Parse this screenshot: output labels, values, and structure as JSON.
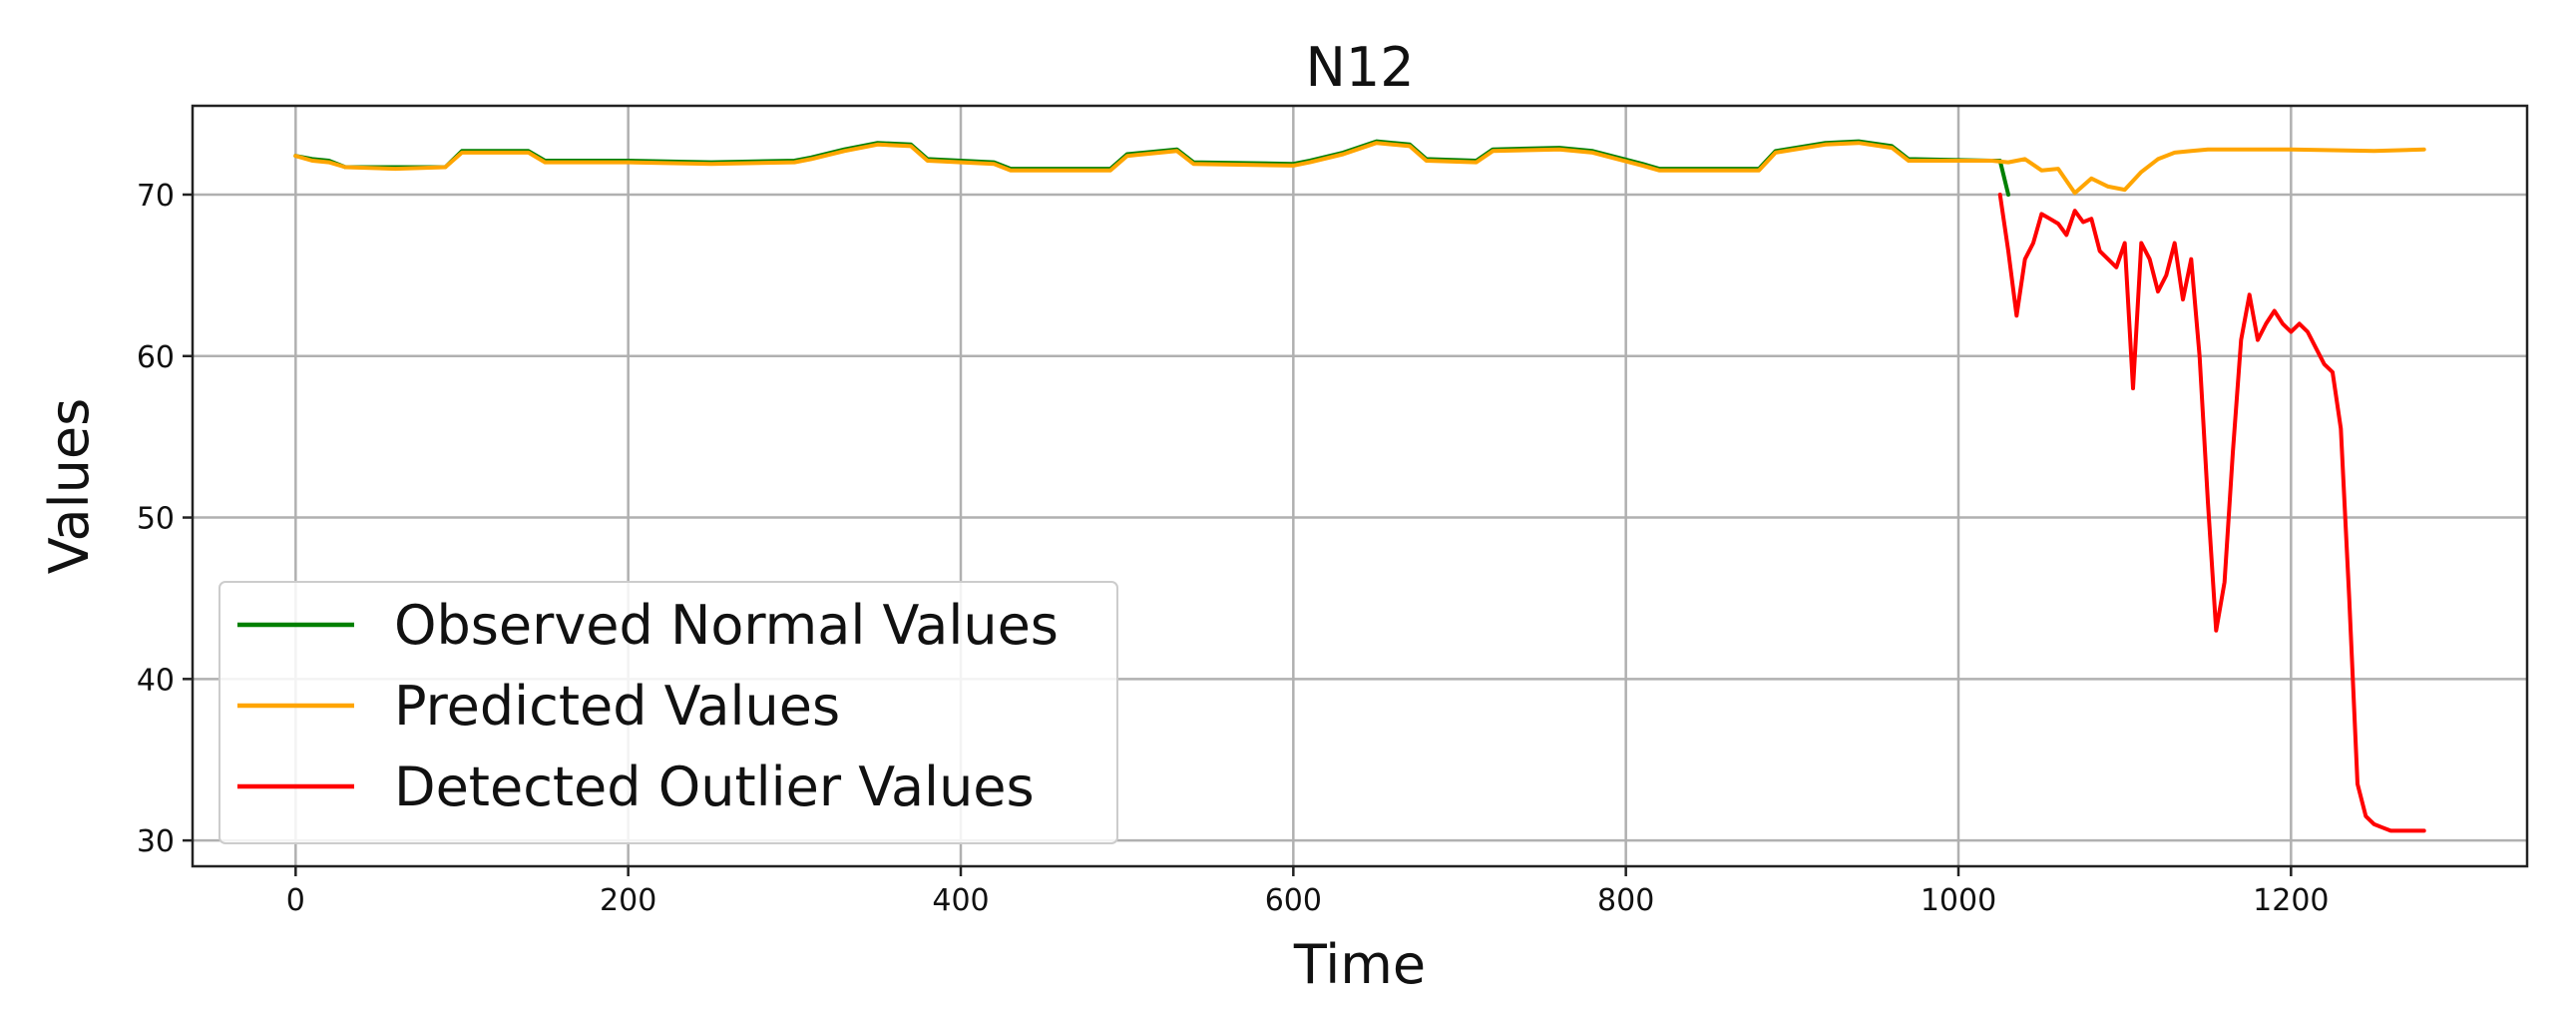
{
  "chart_data": {
    "type": "line",
    "title": "N12",
    "xlabel": "Time",
    "ylabel": "Values",
    "xlim": [
      -62,
      1342
    ],
    "ylim": [
      28.4,
      75.5
    ],
    "xticks": [
      0,
      200,
      400,
      600,
      800,
      1000,
      1200
    ],
    "yticks": [
      30,
      40,
      50,
      60,
      70
    ],
    "grid": true,
    "legend_position": "lower-left",
    "series": [
      {
        "name": "Observed Normal Values",
        "color": "#008000",
        "x": [
          0,
          10,
          20,
          30,
          60,
          90,
          100,
          140,
          150,
          200,
          250,
          300,
          310,
          330,
          350,
          370,
          380,
          420,
          430,
          490,
          500,
          530,
          540,
          600,
          610,
          630,
          650,
          670,
          680,
          710,
          720,
          760,
          780,
          810,
          820,
          880,
          890,
          920,
          940,
          960,
          970,
          1020,
          1025,
          1030
        ],
        "y": [
          72.4,
          72.2,
          72.1,
          71.7,
          71.7,
          71.7,
          72.7,
          72.7,
          72.1,
          72.1,
          72.0,
          72.1,
          72.3,
          72.8,
          73.2,
          73.1,
          72.2,
          72.0,
          71.6,
          71.6,
          72.5,
          72.8,
          72.0,
          71.9,
          72.1,
          72.6,
          73.3,
          73.1,
          72.2,
          72.1,
          72.8,
          72.9,
          72.7,
          71.9,
          71.6,
          71.6,
          72.7,
          73.2,
          73.3,
          73.0,
          72.2,
          72.1,
          72.1,
          70.0
        ]
      },
      {
        "name": "Predicted Values",
        "color": "#ffa500",
        "x": [
          0,
          10,
          20,
          30,
          60,
          90,
          100,
          140,
          150,
          200,
          250,
          300,
          310,
          330,
          350,
          370,
          380,
          420,
          430,
          490,
          500,
          530,
          540,
          600,
          610,
          630,
          650,
          670,
          680,
          710,
          720,
          760,
          780,
          810,
          820,
          880,
          890,
          920,
          940,
          960,
          970,
          1020,
          1030,
          1040,
          1050,
          1060,
          1070,
          1080,
          1090,
          1100,
          1110,
          1120,
          1130,
          1140,
          1150,
          1160,
          1170,
          1200,
          1250,
          1280
        ],
        "y": [
          72.4,
          72.1,
          72.0,
          71.7,
          71.6,
          71.7,
          72.6,
          72.6,
          72.0,
          72.0,
          71.9,
          72.0,
          72.2,
          72.7,
          73.1,
          73.0,
          72.1,
          71.9,
          71.5,
          71.5,
          72.4,
          72.7,
          71.9,
          71.8,
          72.0,
          72.5,
          73.2,
          73.0,
          72.1,
          72.0,
          72.7,
          72.8,
          72.6,
          71.8,
          71.5,
          71.5,
          72.6,
          73.1,
          73.2,
          72.9,
          72.1,
          72.1,
          72.0,
          72.2,
          71.5,
          71.6,
          70.1,
          71.0,
          70.5,
          70.3,
          71.4,
          72.2,
          72.6,
          72.7,
          72.8,
          72.8,
          72.8,
          72.8,
          72.7,
          72.8
        ]
      },
      {
        "name": "Detected Outlier Values",
        "color": "#ff0000",
        "x": [
          1025,
          1030,
          1035,
          1040,
          1045,
          1050,
          1055,
          1060,
          1065,
          1070,
          1075,
          1080,
          1085,
          1090,
          1095,
          1100,
          1105,
          1110,
          1115,
          1120,
          1125,
          1130,
          1135,
          1140,
          1145,
          1150,
          1155,
          1160,
          1165,
          1170,
          1175,
          1180,
          1185,
          1190,
          1195,
          1200,
          1205,
          1210,
          1215,
          1220,
          1225,
          1230,
          1235,
          1240,
          1245,
          1250,
          1255,
          1260,
          1265,
          1270,
          1275,
          1280
        ],
        "y": [
          70.0,
          66.5,
          62.5,
          66.0,
          67.0,
          68.8,
          68.5,
          68.2,
          67.5,
          69.0,
          68.3,
          68.5,
          66.5,
          66.0,
          65.5,
          67.0,
          58.0,
          67.0,
          66.0,
          64.0,
          65.0,
          67.0,
          63.5,
          66.0,
          60.0,
          51.0,
          43.0,
          46.0,
          54.0,
          61.0,
          63.8,
          61.0,
          62.0,
          62.8,
          62.0,
          61.5,
          62.0,
          61.5,
          60.5,
          59.5,
          59.0,
          55.5,
          45.0,
          33.5,
          31.5,
          31.0,
          30.8,
          30.6,
          30.6,
          30.6,
          30.6,
          30.6
        ]
      }
    ]
  }
}
